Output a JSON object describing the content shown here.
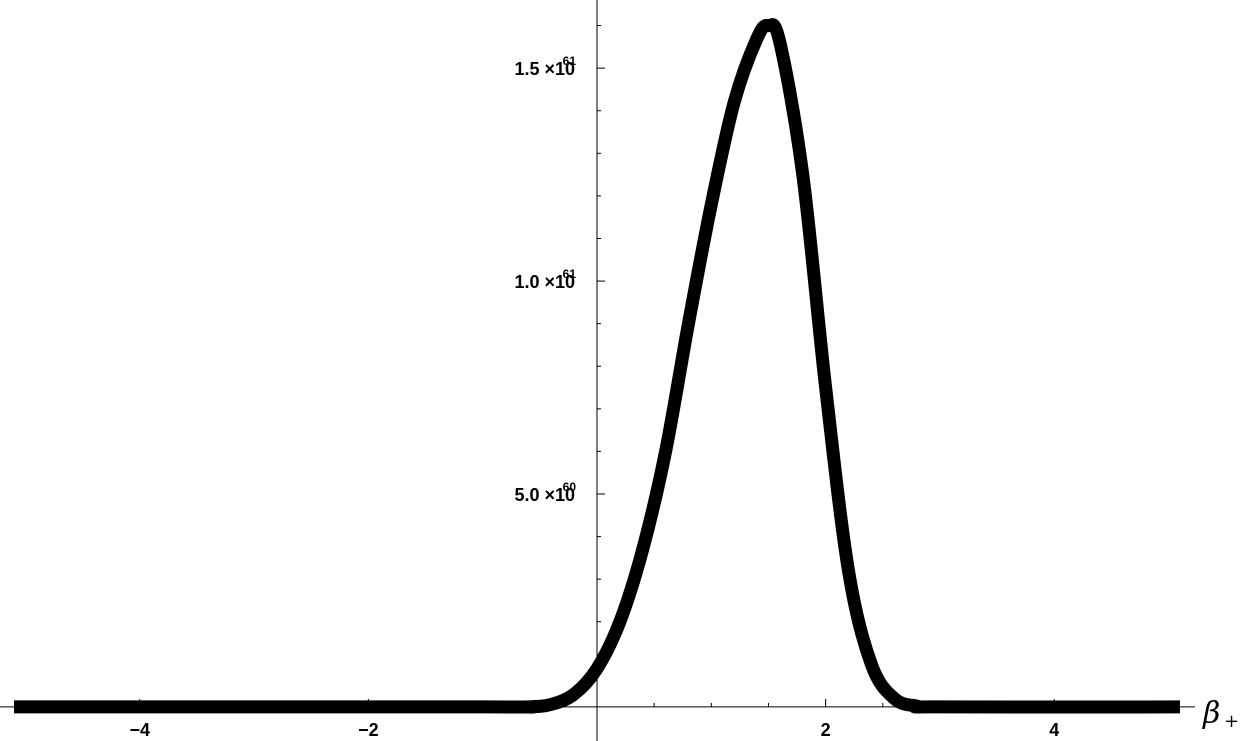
{
  "chart_data": {
    "type": "line",
    "title": "",
    "xlabel": "β",
    "xlabel_subscript": "+",
    "ylabel": "",
    "xlim": [
      -5.1,
      5.1
    ],
    "ylim": [
      -8e+59,
      1.66e+61
    ],
    "x_ticks": [
      {
        "value": -4,
        "label": "−4"
      },
      {
        "value": -2,
        "label": "−2"
      },
      {
        "value": 2,
        "label": "2"
      },
      {
        "value": 4,
        "label": "4"
      }
    ],
    "y_ticks": [
      {
        "value": 5e+60,
        "mantissa": "5.0",
        "times": "×10",
        "exponent": "60"
      },
      {
        "value": 1e+61,
        "mantissa": "1.0",
        "times": "×10",
        "exponent": "61"
      },
      {
        "value": 1.5e+61,
        "mantissa": "1.5",
        "times": "×10",
        "exponent": "61"
      }
    ],
    "series": [
      {
        "color": "#000000",
        "x": [
          -5.1,
          -1.0,
          -0.6,
          -0.4,
          -0.2,
          0.0,
          0.2,
          0.4,
          0.6,
          0.8,
          1.0,
          1.2,
          1.4,
          1.5,
          1.6,
          1.8,
          2.0,
          2.2,
          2.4,
          2.6,
          2.8,
          3.0,
          5.1
        ],
        "y": [
          0,
          0,
          2e+57,
          6e+58,
          3e+59,
          9e+59,
          2e+60,
          3.7e+60,
          6e+60,
          9e+60,
          1.18e+61,
          1.42e+61,
          1.57e+61,
          1.6e+61,
          1.56e+61,
          1.25e+61,
          7.5e+60,
          3.2e+60,
          1e+60,
          2e+59,
          2e+58,
          0,
          0
        ]
      }
    ]
  }
}
